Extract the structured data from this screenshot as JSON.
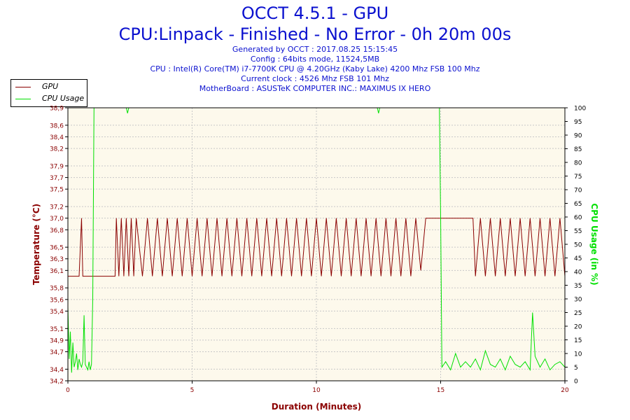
{
  "header": {
    "title": "OCCT 4.5.1 - GPU",
    "subtitle": "CPU:Linpack - Finished - No Error - 0h 20m 00s",
    "info": [
      "Generated by OCCT : 2017.08.25 15:15:45",
      "Config : 64bits mode, 11524,5MB",
      "CPU : Intel(R) Core(TM) i7-7700K CPU @ 4.20GHz (Kaby Lake) 4200 Mhz FSB 100 Mhz",
      "Current clock : 4526 Mhz FSB 101 Mhz",
      "MotherBoard : ASUSTeK COMPUTER INC.: MAXIMUS IX HERO"
    ]
  },
  "colors": {
    "gpu": "#8b0000",
    "cpu": "#00e000",
    "plot_bg": "#fdf9ec",
    "grid": "#c8c8c8",
    "axis_text": "#8b0000",
    "ylabel_left": "#8b0000",
    "ylabel_right": "#00e000"
  },
  "chart_data": {
    "type": "line",
    "xlabel": "Duration (Minutes)",
    "ylabel": "Temperature (°C)",
    "y2label": "CPU Usage (in %)",
    "xlim": [
      0,
      20
    ],
    "ylim": [
      34.2,
      38.9
    ],
    "y2lim": [
      0,
      100
    ],
    "x_ticks": [
      "0",
      "5",
      "10",
      "15",
      "20"
    ],
    "y_ticks": [
      {
        "value": 34.2,
        "label": "34,2"
      },
      {
        "value": 34.4,
        "label": "34,4"
      },
      {
        "value": 34.7,
        "label": "34,7"
      },
      {
        "value": 34.9,
        "label": "34,9"
      },
      {
        "value": 35.1,
        "label": "35,1"
      },
      {
        "value": 35.4,
        "label": "35,4"
      },
      {
        "value": 35.6,
        "label": "35,6"
      },
      {
        "value": 35.8,
        "label": "35,8"
      },
      {
        "value": 36.1,
        "label": "36,1"
      },
      {
        "value": 36.3,
        "label": "36,3"
      },
      {
        "value": 36.5,
        "label": "36,5"
      },
      {
        "value": 36.8,
        "label": "36,8"
      },
      {
        "value": 37.0,
        "label": "37,0"
      },
      {
        "value": 37.2,
        "label": "37,2"
      },
      {
        "value": 37.5,
        "label": "37,5"
      },
      {
        "value": 37.7,
        "label": "37,7"
      },
      {
        "value": 37.9,
        "label": "37,9"
      },
      {
        "value": 38.2,
        "label": "38,2"
      },
      {
        "value": 38.4,
        "label": "38,4"
      },
      {
        "value": 38.6,
        "label": "38,6"
      },
      {
        "value": 38.9,
        "label": "38,9"
      }
    ],
    "y2_ticks": [
      "0",
      "5",
      "10",
      "15",
      "20",
      "25",
      "30",
      "35",
      "40",
      "45",
      "50",
      "55",
      "60",
      "65",
      "70",
      "75",
      "80",
      "85",
      "90",
      "95",
      "100"
    ],
    "legend": {
      "position": "top-left",
      "entries": [
        "GPU",
        "CPU Usage"
      ]
    },
    "grid": true,
    "series": [
      {
        "name": "GPU",
        "axis": "left",
        "x": [
          0,
          0.45,
          0.55,
          0.6,
          0.9,
          1.0,
          1.9,
          1.95,
          2.05,
          2.15,
          2.25,
          2.35,
          2.45,
          2.55,
          2.65,
          2.75,
          3.0,
          3.2,
          3.4,
          3.6,
          3.8,
          4.0,
          4.2,
          4.4,
          4.6,
          4.8,
          5.0,
          5.2,
          5.4,
          5.6,
          5.8,
          6.0,
          6.2,
          6.4,
          6.6,
          6.8,
          7.0,
          7.2,
          7.4,
          7.6,
          7.8,
          8.0,
          8.2,
          8.4,
          8.6,
          8.8,
          9.0,
          9.2,
          9.4,
          9.6,
          9.8,
          10.0,
          10.2,
          10.4,
          10.6,
          10.8,
          11.0,
          11.2,
          11.4,
          11.6,
          11.8,
          12.0,
          12.2,
          12.4,
          12.6,
          12.8,
          13.0,
          13.2,
          13.4,
          13.6,
          13.8,
          14.0,
          14.2,
          14.4,
          14.6,
          14.8,
          15.0,
          15.5,
          16.0,
          16.3,
          16.4,
          16.6,
          16.8,
          17.0,
          17.2,
          17.4,
          17.6,
          17.8,
          18.0,
          18.2,
          18.4,
          18.6,
          18.8,
          19.0,
          19.2,
          19.4,
          19.6,
          19.8,
          20.0
        ],
        "values": [
          36.0,
          36.0,
          37.0,
          36.0,
          36.0,
          36.0,
          36.0,
          37.0,
          36.0,
          37.0,
          36.0,
          37.0,
          36.0,
          37.0,
          36.0,
          37.0,
          36.0,
          37.0,
          36.0,
          37.0,
          36.0,
          37.0,
          36.0,
          37.0,
          36.0,
          37.0,
          36.0,
          37.0,
          36.0,
          37.0,
          36.0,
          37.0,
          36.0,
          37.0,
          36.0,
          37.0,
          36.0,
          37.0,
          36.0,
          37.0,
          36.0,
          37.0,
          36.0,
          37.0,
          36.0,
          37.0,
          36.0,
          37.0,
          36.0,
          37.0,
          36.0,
          37.0,
          36.0,
          37.0,
          36.0,
          37.0,
          36.0,
          37.0,
          36.0,
          37.0,
          36.0,
          37.0,
          36.0,
          37.0,
          36.0,
          37.0,
          36.0,
          37.0,
          36.0,
          37.0,
          36.0,
          37.0,
          36.1,
          37.0,
          37.0,
          37.0,
          37.0,
          37.0,
          37.0,
          37.0,
          36.0,
          37.0,
          36.0,
          37.0,
          36.0,
          37.0,
          36.0,
          37.0,
          36.0,
          37.0,
          36.0,
          37.0,
          36.0,
          37.0,
          36.0,
          37.0,
          36.0,
          37.0,
          36.0
        ]
      },
      {
        "name": "CPU Usage",
        "axis": "right",
        "x": [
          0,
          0.05,
          0.1,
          0.15,
          0.2,
          0.25,
          0.3,
          0.35,
          0.4,
          0.45,
          0.5,
          0.55,
          0.6,
          0.65,
          0.7,
          0.75,
          0.8,
          0.85,
          0.9,
          0.95,
          1.0,
          1.05,
          2.35,
          2.4,
          2.45,
          12.45,
          12.5,
          12.55,
          14.95,
          15.0,
          15.05,
          15.2,
          15.4,
          15.6,
          15.8,
          16.0,
          16.2,
          16.4,
          16.6,
          16.8,
          17.0,
          17.2,
          17.4,
          17.6,
          17.8,
          18.0,
          18.2,
          18.4,
          18.6,
          18.7,
          18.8,
          19.0,
          19.2,
          19.4,
          19.6,
          19.8,
          20.0
        ],
        "values": [
          27,
          8,
          18,
          3,
          14,
          5,
          7,
          10,
          4,
          8,
          6,
          5,
          7,
          24,
          6,
          5,
          4,
          7,
          4,
          6,
          30,
          100,
          100,
          98,
          100,
          100,
          98,
          100,
          100,
          60,
          5,
          7,
          4,
          10,
          5,
          7,
          5,
          8,
          4,
          11,
          6,
          5,
          8,
          4,
          9,
          6,
          5,
          7,
          4,
          25,
          9,
          5,
          8,
          4,
          6,
          7,
          5
        ]
      }
    ]
  }
}
